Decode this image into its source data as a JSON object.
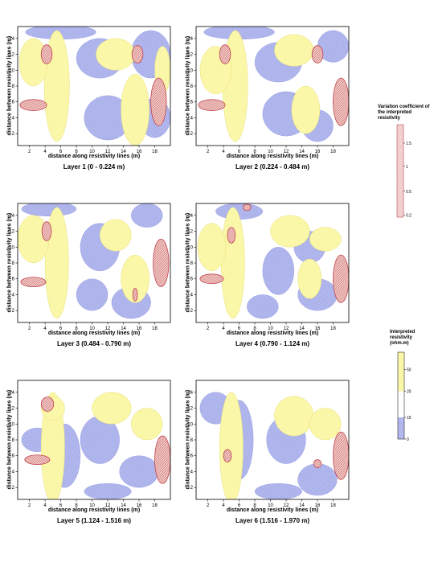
{
  "chart_data": [
    {
      "type": "contour",
      "title": "Layer 1 (0 - 0.224 m)",
      "xlabel": "distance along resistivity lines (m)",
      "ylabel": "distance between resistivity lines (m)",
      "xticks": [
        2,
        4,
        6,
        8,
        10,
        12,
        14,
        16,
        18
      ],
      "yticks": [
        2,
        4,
        6,
        8,
        10,
        12,
        14
      ],
      "xlim": [
        0.5,
        20
      ],
      "ylim": [
        0.5,
        15.5
      ]
    },
    {
      "type": "contour",
      "title": "Layer 2 (0.224 - 0.484 m)",
      "xlabel": "distance along resistivity lines (m)",
      "ylabel": "distance between resistivity lines (m)",
      "xticks": [
        2,
        4,
        6,
        8,
        10,
        12,
        14,
        16,
        18
      ],
      "yticks": [
        2,
        4,
        6,
        8,
        10,
        12,
        14
      ],
      "xlim": [
        0.5,
        20
      ],
      "ylim": [
        0.5,
        15.5
      ]
    },
    {
      "type": "contour",
      "title": "Layer 3 (0.484 - 0.790 m)",
      "xlabel": "distance along resistivity lines (m)",
      "ylabel": "distance between resistivity lines (m)",
      "xticks": [
        2,
        4,
        6,
        8,
        10,
        12,
        14,
        16,
        18
      ],
      "yticks": [
        2,
        4,
        6,
        8,
        10,
        12,
        14
      ],
      "xlim": [
        0.5,
        20
      ],
      "ylim": [
        0.5,
        15.5
      ]
    },
    {
      "type": "contour",
      "title": "Layer 4 (0.790  - 1.124 m)",
      "xlabel": "distance along resistivity lines (m)",
      "ylabel": "distance between resistivity lines (m)",
      "xticks": [
        2,
        4,
        6,
        8,
        10,
        12,
        14,
        16,
        18
      ],
      "yticks": [
        2,
        4,
        6,
        8,
        10,
        12,
        14
      ],
      "xlim": [
        0.5,
        20
      ],
      "ylim": [
        0.5,
        15.5
      ]
    },
    {
      "type": "contour",
      "title": "Layer 5 (1.124 - 1.516 m)",
      "xlabel": "distance along resistivity lines (m)",
      "ylabel": "distance between resistivity lines (m)",
      "xticks": [
        2,
        4,
        6,
        8,
        10,
        12,
        14,
        16,
        18
      ],
      "yticks": [
        2,
        4,
        6,
        8,
        10,
        12,
        14
      ],
      "xlim": [
        0.5,
        20
      ],
      "ylim": [
        0.5,
        15.5
      ]
    },
    {
      "type": "contour",
      "title": "Layer 6 (1.516 - 1.970 m)",
      "xlabel": "distance along resistivity lines (m)",
      "ylabel": "distance between resistivity lines (m)",
      "xticks": [
        2,
        4,
        6,
        8,
        10,
        12,
        14,
        16,
        18
      ],
      "yticks": [
        2,
        4,
        6,
        8,
        10,
        12,
        14
      ],
      "xlim": [
        0.5,
        20
      ],
      "ylim": [
        0.5,
        15.5
      ]
    }
  ],
  "legend_variation": {
    "title": "Variation coefficient of the interpreted resistivity",
    "ticks": [
      "1.5",
      "1",
      "0.5",
      "0.2"
    ],
    "color": "#e8a0a6"
  },
  "legend_resistivity": {
    "title": "Interpreted resistivity (ohm.m)",
    "ticks": [
      "50",
      "20",
      "10",
      "0"
    ],
    "colors": {
      "high": "#fbf7a8",
      "mid": "#ffffff",
      "low": "#b9bff0"
    }
  }
}
